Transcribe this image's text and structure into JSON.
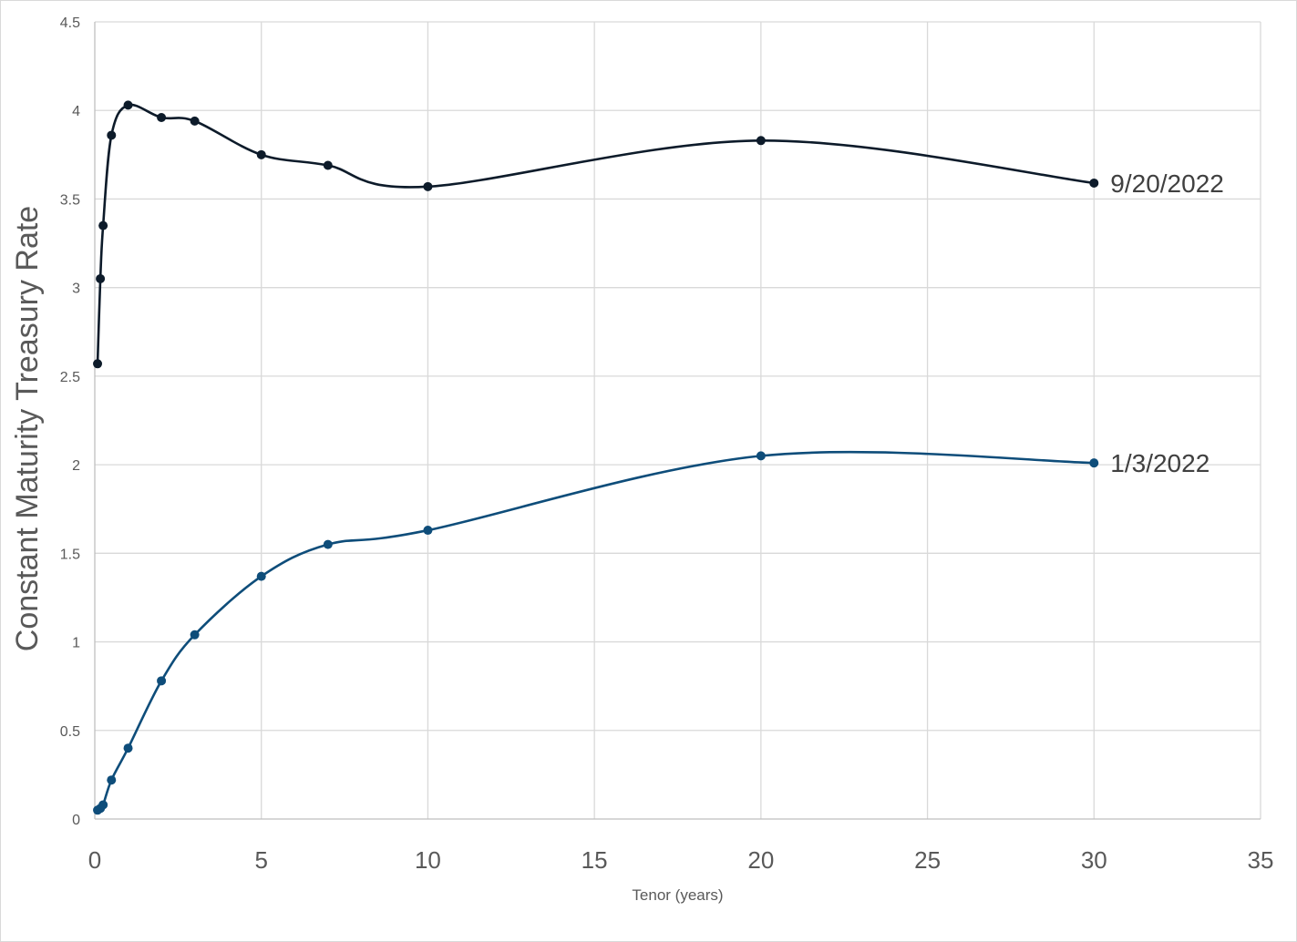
{
  "chart_data": {
    "type": "line",
    "xlabel": "Tenor (years)",
    "ylabel": "Constant Maturity Treasury Rate",
    "xlim": [
      0,
      35
    ],
    "ylim": [
      0,
      4.5
    ],
    "xticks": [
      0,
      5,
      10,
      15,
      20,
      25,
      30,
      35
    ],
    "yticks": [
      0,
      0.5,
      1,
      1.5,
      2,
      2.5,
      3,
      3.5,
      4,
      4.5
    ],
    "grid": true,
    "legend": "none",
    "smoothed": true,
    "series": [
      {
        "name": "9/20/2022",
        "color": "#0d1b2a",
        "x": [
          0.083,
          0.167,
          0.25,
          0.5,
          1,
          2,
          3,
          5,
          7,
          10,
          20,
          30
        ],
        "y": [
          2.57,
          3.05,
          3.35,
          3.86,
          4.03,
          3.96,
          3.94,
          3.75,
          3.69,
          3.57,
          3.83,
          3.59
        ]
      },
      {
        "name": "1/3/2022",
        "color": "#0e4d7a",
        "x": [
          0.083,
          0.167,
          0.25,
          0.5,
          1,
          2,
          3,
          5,
          7,
          10,
          20,
          30
        ],
        "y": [
          0.05,
          0.06,
          0.08,
          0.22,
          0.4,
          0.78,
          1.04,
          1.37,
          1.55,
          1.63,
          2.05,
          2.01
        ]
      }
    ]
  }
}
